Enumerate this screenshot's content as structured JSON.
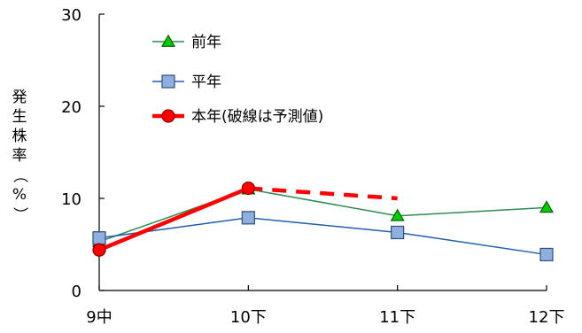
{
  "chart_data": {
    "type": "line",
    "categories": [
      "9中",
      "10下",
      "11下",
      "12下"
    ],
    "ylabel": "発生株率（%）",
    "ylim": [
      0,
      30
    ],
    "yticks": [
      0,
      10,
      20,
      30
    ],
    "grid": false,
    "legend_position": "top-left",
    "series": [
      {
        "name": "前年",
        "values": [
          5.3,
          11.0,
          8.1,
          9.0
        ],
        "color": "#2e8b57",
        "marker": "triangle",
        "marker_fill": "#00cc00",
        "line_width": 1.5,
        "dashed_from_index": null
      },
      {
        "name": "平年",
        "values": [
          5.7,
          7.9,
          6.3,
          3.9
        ],
        "color": "#1f5fb0",
        "marker": "square",
        "marker_fill": "#8fb0df",
        "line_width": 1.5,
        "dashed_from_index": null
      },
      {
        "name": "本年(破線は予測値)",
        "values": [
          4.4,
          11.1,
          10.0,
          null
        ],
        "color": "#ff0000",
        "marker": "circle",
        "marker_fill": "#ff0000",
        "line_width": 4.5,
        "dashed_from_index": 1
      }
    ]
  }
}
